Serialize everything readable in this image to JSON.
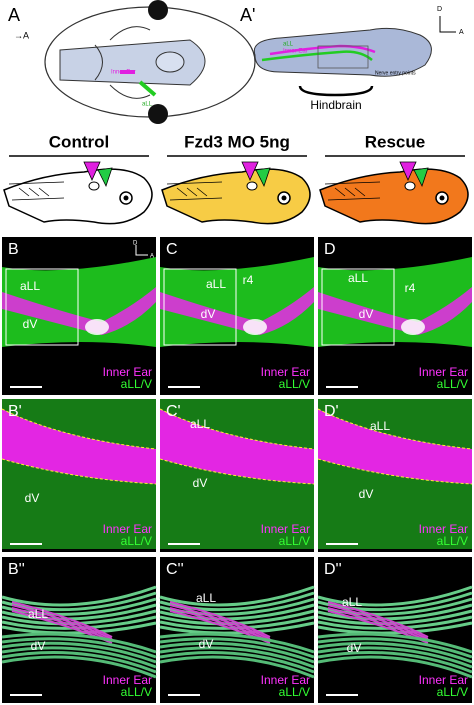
{
  "panel_a": {
    "label": "A",
    "orientation": "→A",
    "labels": [
      "Inner Ear",
      "aLL"
    ]
  },
  "panel_a_prime": {
    "label": "A'",
    "compass": [
      "D",
      "A"
    ],
    "labels": [
      "aLL",
      "Inner Ear"
    ],
    "note": "Nerve entry points",
    "region": "Hindbrain"
  },
  "conditions": [
    "Control",
    "Fzd3 MO 5ng",
    "Rescue"
  ],
  "rows": [
    {
      "panels": [
        {
          "label": "B",
          "compass": [
            "D",
            "A"
          ],
          "texts": [
            "aLL",
            "dV"
          ],
          "legend": [
            "Inner Ear",
            "aLL/V"
          ]
        },
        {
          "label": "C",
          "texts": [
            "aLL",
            "dV",
            "r4"
          ],
          "legend": [
            "Inner Ear",
            "aLL/V"
          ]
        },
        {
          "label": "D",
          "texts": [
            "aLL",
            "dV",
            "r4"
          ],
          "legend": [
            "Inner Ear",
            "aLL/V"
          ]
        }
      ]
    },
    {
      "panels": [
        {
          "label": "B'",
          "texts": [
            "dV"
          ],
          "legend": [
            "Inner Ear",
            "aLL/V"
          ]
        },
        {
          "label": "C'",
          "texts": [
            "aLL",
            "dV"
          ],
          "legend": [
            "Inner Ear",
            "aLL/V"
          ]
        },
        {
          "label": "D'",
          "texts": [
            "aLL",
            "dV"
          ],
          "legend": [
            "Inner Ear",
            "aLL/V"
          ]
        }
      ]
    },
    {
      "panels": [
        {
          "label": "B''",
          "texts": [
            "aLL",
            "dV"
          ],
          "legend": [
            "Inner Ear",
            "aLL/V"
          ]
        },
        {
          "label": "C''",
          "texts": [
            "aLL",
            "dV"
          ],
          "legend": [
            "Inner Ear",
            "aLL/V"
          ]
        },
        {
          "label": "D''",
          "texts": [
            "aLL",
            "dV"
          ],
          "legend": [
            "Inner Ear",
            "aLL/V"
          ]
        }
      ]
    }
  ]
}
